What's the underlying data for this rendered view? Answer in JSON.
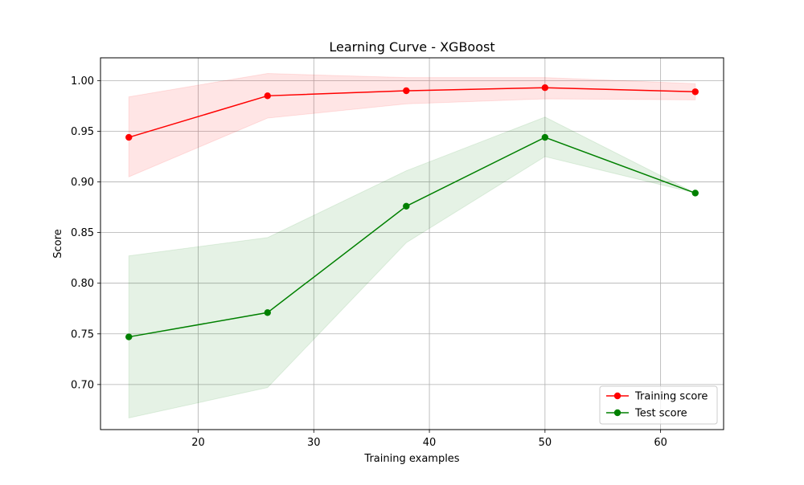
{
  "chart_data": {
    "type": "line",
    "title": "Learning Curve - XGBoost",
    "xlabel": "Training examples",
    "ylabel": "Score",
    "x": [
      14,
      26,
      38,
      50,
      63
    ],
    "xlim": [
      11.55,
      65.45
    ],
    "ylim": [
      0.6555,
      1.0225
    ],
    "xticks": [
      20,
      30,
      40,
      50,
      60
    ],
    "yticks": [
      0.7,
      0.75,
      0.8,
      0.85,
      0.9,
      0.95,
      1.0
    ],
    "xtick_labels": [
      "20",
      "30",
      "40",
      "50",
      "60"
    ],
    "ytick_labels": [
      "0.70",
      "0.75",
      "0.80",
      "0.85",
      "0.90",
      "0.95",
      "1.00"
    ],
    "grid": true,
    "legend_position": "bottom-right",
    "series": [
      {
        "name": "Training score",
        "color": "#ff0000",
        "band_color": "#ff0000",
        "values": [
          0.944,
          0.985,
          0.99,
          0.993,
          0.989
        ],
        "lower": [
          0.905,
          0.963,
          0.977,
          0.982,
          0.981
        ],
        "upper": [
          0.984,
          1.007,
          1.003,
          1.003,
          0.997
        ]
      },
      {
        "name": "Test score",
        "color": "#008000",
        "band_color": "#008000",
        "values": [
          0.747,
          0.771,
          0.876,
          0.944,
          0.889
        ],
        "lower": [
          0.667,
          0.697,
          0.84,
          0.925,
          0.889
        ],
        "upper": [
          0.827,
          0.845,
          0.911,
          0.964,
          0.889
        ]
      }
    ]
  }
}
